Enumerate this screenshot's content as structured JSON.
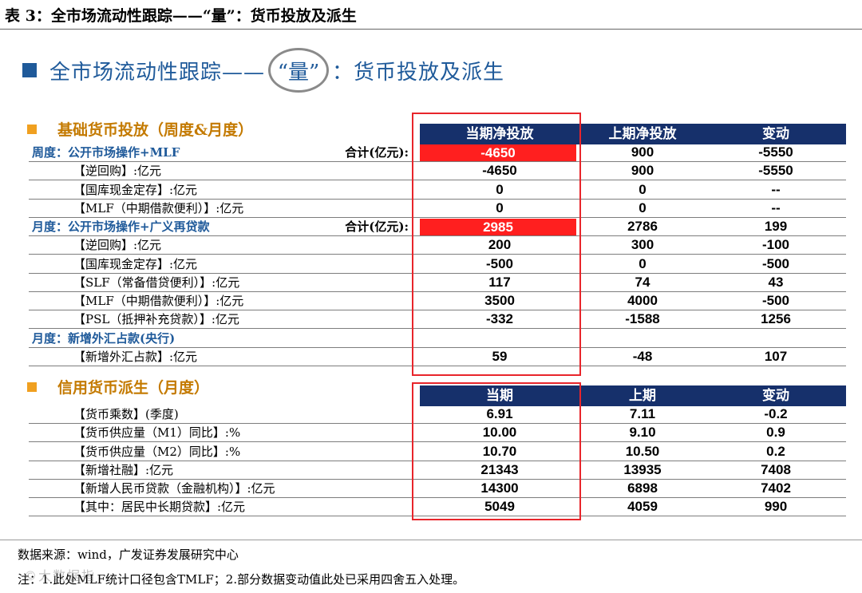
{
  "top_title": "表 3：全市场流动性跟踪——“量”：货币投放及派生",
  "heading": {
    "prefix": "全市场流动性跟踪——",
    "quoted": "“量”",
    "suffix": "：货币投放及派生"
  },
  "colors": {
    "accent_blue": "#1f5a9a",
    "header_navy": "#16306b",
    "highlight_red": "#ff1f1f",
    "section_orange": "#c47a00"
  },
  "section1": {
    "title": "基础货币投放（周度&月度）",
    "headers": [
      "当期净投放",
      "上期净投放",
      "变动"
    ],
    "rows": [
      {
        "kind": "group",
        "label": "周度：公开市场操作+MLF",
        "total_label": "合计(亿元):",
        "c1": "-4650",
        "c2": "900",
        "c3": "-5550",
        "highlight": true
      },
      {
        "kind": "item",
        "label": "【逆回购】:亿元",
        "c1": "-4650",
        "c2": "900",
        "c3": "-5550"
      },
      {
        "kind": "item",
        "label": "【国库现金定存】:亿元",
        "c1": "0",
        "c2": "0",
        "c3": "--"
      },
      {
        "kind": "item",
        "label": "【MLF（中期借款便利）】:亿元",
        "c1": "0",
        "c2": "0",
        "c3": "--"
      },
      {
        "kind": "group",
        "label": "月度：公开市场操作+广义再贷款",
        "total_label": "合计(亿元):",
        "c1": "2985",
        "c2": "2786",
        "c3": "199",
        "highlight": true
      },
      {
        "kind": "item",
        "label": "【逆回购】:亿元",
        "c1": "200",
        "c2": "300",
        "c3": "-100"
      },
      {
        "kind": "item",
        "label": "【国库现金定存】:亿元",
        "c1": "-500",
        "c2": "0",
        "c3": "-500"
      },
      {
        "kind": "item",
        "label": "【SLF（常备借贷便利）】:亿元",
        "c1": "117",
        "c2": "74",
        "c3": "43"
      },
      {
        "kind": "item",
        "label": "【MLF（中期借款便利）】:亿元",
        "c1": "3500",
        "c2": "4000",
        "c3": "-500"
      },
      {
        "kind": "item",
        "label": "【PSL（抵押补充贷款）】:亿元",
        "c1": "-332",
        "c2": "-1588",
        "c3": "1256"
      },
      {
        "kind": "group",
        "label": "月度：新增外汇占款(央行)",
        "total_label": "",
        "c1": "",
        "c2": "",
        "c3": ""
      },
      {
        "kind": "item",
        "label": "【新增外汇占款】:亿元",
        "c1": "59",
        "c2": "-48",
        "c3": "107"
      }
    ]
  },
  "section2": {
    "title": "信用货币派生（月度）",
    "headers": [
      "当期",
      "上期",
      "变动"
    ],
    "rows": [
      {
        "kind": "item",
        "label": "【货币乘数】(季度)",
        "c1": "6.91",
        "c2": "7.11",
        "c3": "-0.2"
      },
      {
        "kind": "item",
        "label": "【货币供应量（M1）同比】:%",
        "c1": "10.00",
        "c2": "9.10",
        "c3": "0.9"
      },
      {
        "kind": "item",
        "label": "【货币供应量（M2）同比】:%",
        "c1": "10.70",
        "c2": "10.50",
        "c3": "0.2"
      },
      {
        "kind": "item",
        "label": "【新增社融】:亿元",
        "c1": "21343",
        "c2": "13935",
        "c3": "7408"
      },
      {
        "kind": "item",
        "label": "【新增人民币贷款（金融机构）】:亿元",
        "c1": "14300",
        "c2": "6898",
        "c3": "7402"
      },
      {
        "kind": "item",
        "label": "【其中：居民中长期贷款】:亿元",
        "c1": "5049",
        "c2": "4059",
        "c3": "990"
      }
    ]
  },
  "source": "数据来源：wind，广发证券发展研究中心",
  "footnote": "注：1.此处MLF统计口径包含TMLF；2.部分数据变动值此处已采用四舍五入处理。",
  "watermark": "©大数据指"
}
